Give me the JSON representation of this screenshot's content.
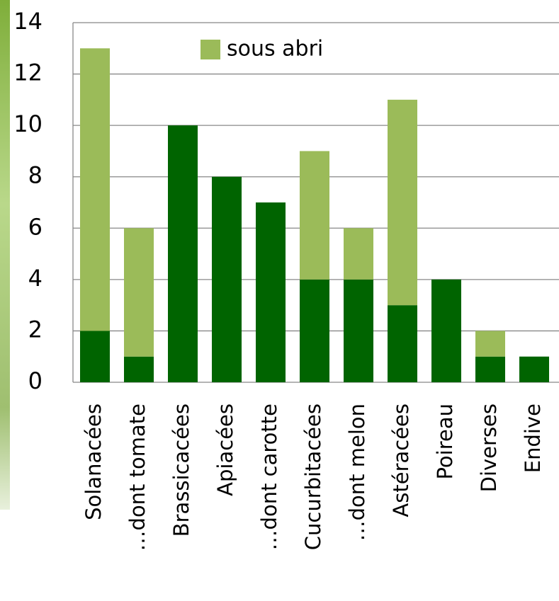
{
  "chart_data": {
    "type": "stacked_bar",
    "categories": [
      "Solanacées",
      "…dont tomate",
      "Brassicacées",
      "Apiacées",
      "…dont carotte",
      "Cucurbitacées",
      "…dont melon",
      "Astéracées",
      "Poireau",
      "Diverses",
      "Endive"
    ],
    "series": [
      {
        "color": "#006400",
        "values": [
          2,
          1,
          10,
          8,
          7,
          4,
          4,
          3,
          4,
          1,
          1
        ]
      },
      {
        "name": "sous abri",
        "color": "#9bbb59",
        "values": [
          11,
          5,
          0,
          0,
          0,
          5,
          2,
          8,
          0,
          1,
          0
        ]
      }
    ],
    "ylim": [
      0,
      14
    ],
    "yticks": [
      0,
      2,
      4,
      6,
      8,
      10,
      12,
      14
    ],
    "grid": true
  }
}
